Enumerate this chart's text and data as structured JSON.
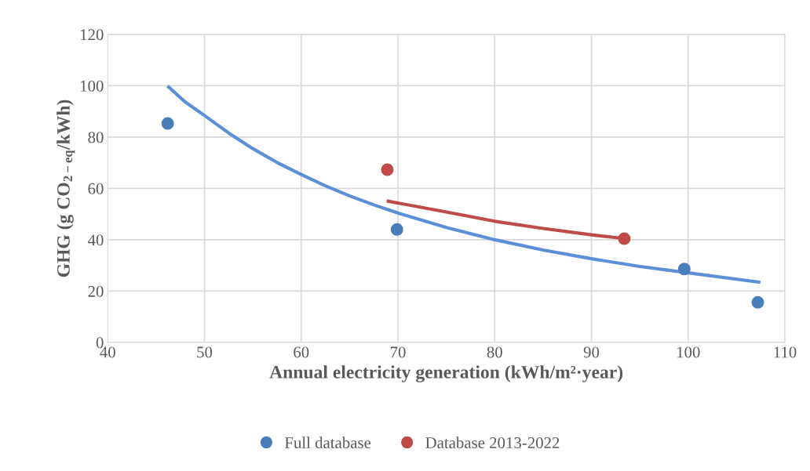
{
  "chart_data": {
    "type": "scatter",
    "xlabel": "Annual electricity generation (kWh/m²·year)",
    "ylabel": "GHG (g CO$_{2−eq}$/kWh)",
    "series": [
      {
        "name": "Full database",
        "color": "#4a7ebb",
        "x": [
          46.2,
          69.9,
          99.6,
          107.2
        ],
        "values": [
          85.3,
          44,
          28.6,
          15.6
        ],
        "marker": "circle"
      },
      {
        "name": "Database 2013-2022",
        "color": "#be4b48",
        "x": [
          68.9,
          93.4
        ],
        "values": [
          67.3,
          40.4
        ],
        "marker": "circle"
      },
      {
        "type": "line",
        "color": "#5b90d9",
        "x": [
          46.3,
          48,
          50,
          52.5,
          55,
          57.5,
          60,
          62.5,
          65,
          67.5,
          70,
          75,
          80,
          85,
          90,
          95,
          100,
          107.3
        ],
        "values": [
          99.5,
          93.7,
          88.4,
          81.6,
          75.5,
          70.1,
          65.4,
          61.0,
          57.1,
          53.6,
          50.4,
          44.8,
          40.0,
          36.0,
          32.6,
          29.6,
          27.1,
          23.5
        ],
        "marker": "none"
      },
      {
        "type": "line",
        "color": "#be4b48",
        "x": [
          69,
          75,
          80,
          85,
          90,
          93.4
        ],
        "values": [
          55,
          50.8,
          47.2,
          44.4,
          41.9,
          40.5
        ],
        "marker": "none"
      }
    ],
    "xlim": [
      40,
      110
    ],
    "xticks": [
      40,
      50,
      60,
      70,
      80,
      90,
      100,
      110
    ],
    "ylim": [
      0,
      120
    ],
    "yticks": [
      0,
      20,
      40,
      60,
      80,
      100,
      120
    ],
    "grid": true,
    "legend": "bottom"
  }
}
